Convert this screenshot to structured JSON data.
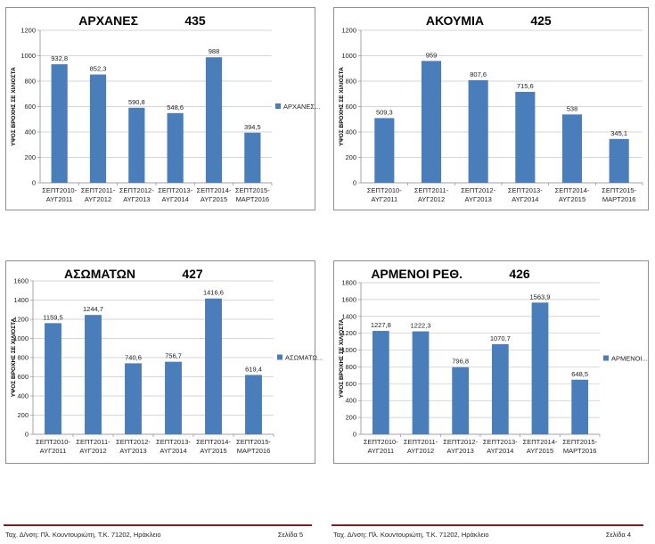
{
  "chart_data": [
    {
      "type": "bar",
      "station": "ΑΡΧΑΝΕΣ",
      "code": "435",
      "ylabel": "ΥΨΟΣ ΒΡΟΧΗΣ ΣΕ ΧΙΛΙΟΣΤΑ",
      "ylim": [
        0,
        1200
      ],
      "yticks": [
        0,
        200,
        400,
        600,
        800,
        1000,
        1200
      ],
      "categories": [
        [
          "ΣΕΠΤ2010-",
          "ΑΥΓ2011"
        ],
        [
          "ΣΕΠΤ2011-",
          "ΑΥΓ2012"
        ],
        [
          "ΣΕΠΤ2012-",
          "ΑΥΓ2013"
        ],
        [
          "ΣΕΠΤ2013-",
          "ΑΥΓ2014"
        ],
        [
          "ΣΕΠΤ2014-",
          "ΑΥΓ2015"
        ],
        [
          "ΣΕΠΤ2015-",
          "ΜΑΡΤ2016"
        ]
      ],
      "values": [
        932.8,
        852.3,
        590.8,
        548.6,
        988,
        394.5
      ],
      "value_labels": [
        "932,8",
        "852,3",
        "590,8",
        "548,6",
        "988",
        "394,5"
      ],
      "legend": "ΑΡΧΑΝΕΣ...",
      "color": "#4a7ebb"
    },
    {
      "type": "bar",
      "station": "ΑΚΟΥΜΙΑ",
      "code": "425",
      "ylabel": "ΥΨΟΣ ΒΡΟΧΗΣ ΣΕ ΧΙΛΙΟΣΤΑ",
      "ylim": [
        0,
        1200
      ],
      "yticks": [
        0,
        200,
        400,
        600,
        800,
        1000,
        1200
      ],
      "categories": [
        [
          "ΣΕΠΤ2010-",
          "ΑΥΓ2011"
        ],
        [
          "ΣΕΠΤ2011-",
          "ΑΥΓ2012"
        ],
        [
          "ΣΕΠΤ2012-",
          "ΑΥΓ2013"
        ],
        [
          "ΣΕΠΤ2013-",
          "ΑΥΓ2014"
        ],
        [
          "ΣΕΠΤ2014-",
          "ΑΥΓ2015"
        ],
        [
          "ΣΕΠΤ2015-",
          "ΜΑΡΤ2016"
        ]
      ],
      "values": [
        509.3,
        959,
        807.6,
        715.6,
        538,
        345.1
      ],
      "value_labels": [
        "509,3",
        "959",
        "807,6",
        "715,6",
        "538",
        "345,1"
      ],
      "legend": "",
      "color": "#4a7ebb"
    },
    {
      "type": "bar",
      "station": "ΑΣΩΜΑΤΩΝ",
      "code": "427",
      "ylabel": "ΥΨΟΣ ΒΡΟΧΗΣ ΣΕ ΧΙΛΙΟΣΤΑ",
      "ylim": [
        0,
        1600
      ],
      "yticks": [
        0,
        200,
        400,
        600,
        800,
        1000,
        1200,
        1400,
        1600
      ],
      "categories": [
        [
          "ΣΕΠΤ2010-",
          "ΑΥΓ2011"
        ],
        [
          "ΣΕΠΤ2011-",
          "ΑΥΓ2012"
        ],
        [
          "ΣΕΠΤ2012-",
          "ΑΥΓ2013"
        ],
        [
          "ΣΕΠΤ2013-",
          "ΑΥΓ2014"
        ],
        [
          "ΣΕΠΤ2014-",
          "ΑΥΓ2015"
        ],
        [
          "ΣΕΠΤ2015-",
          "ΜΑΡΤ2016"
        ]
      ],
      "values": [
        1159.5,
        1244.7,
        740.6,
        756.7,
        1416.6,
        619.4
      ],
      "value_labels": [
        "1159,5",
        "1244,7",
        "740,6",
        "756,7",
        "1416,6",
        "619,4"
      ],
      "legend": "ΑΣΩΜΑΤΩ...",
      "color": "#4a7ebb"
    },
    {
      "type": "bar",
      "station": "ΑΡΜΕΝΟΙ ΡΕΘ.",
      "code": "426",
      "ylabel": "ΥΨΟΣ ΒΡΟΧΗΣ ΣΕ ΧΙΛΙΟΣΤΑ",
      "ylim": [
        0,
        1800
      ],
      "yticks": [
        0,
        200,
        400,
        600,
        800,
        1000,
        1200,
        1400,
        1600,
        1800
      ],
      "categories": [
        [
          "ΣΕΠΤ2010-",
          "ΑΥΓ2011"
        ],
        [
          "ΣΕΠΤ2011-",
          "ΑΥΓ2012"
        ],
        [
          "ΣΕΠΤ2012-",
          "ΑΥΓ2013"
        ],
        [
          "ΣΕΠΤ2013-",
          "ΑΥΓ2014"
        ],
        [
          "ΣΕΠΤ2014-",
          "ΑΥΓ2015"
        ],
        [
          "ΣΕΠΤ2015-",
          "ΜΑΡΤ2016"
        ]
      ],
      "values": [
        1227.8,
        1222.3,
        796.8,
        1070.7,
        1563.9,
        648.5
      ],
      "value_labels": [
        "1227,8",
        "1222,3",
        "796,8",
        "1070,7",
        "1563,9",
        "648,5"
      ],
      "legend": "ΑΡΜΕΝΟΙ...",
      "color": "#4a7ebb"
    }
  ],
  "footer_left": {
    "address": "Ταχ. Δ/νση: Πλ. Κουντουριώτη, Τ.Κ. 71202, Ηράκλειο",
    "page": "Σελίδα 5"
  },
  "footer_right": {
    "address": "Ταχ. Δ/νση: Πλ. Κουντουριώτη, Τ.Κ. 71202, Ηράκλειο",
    "page": "Σελίδα 4"
  }
}
